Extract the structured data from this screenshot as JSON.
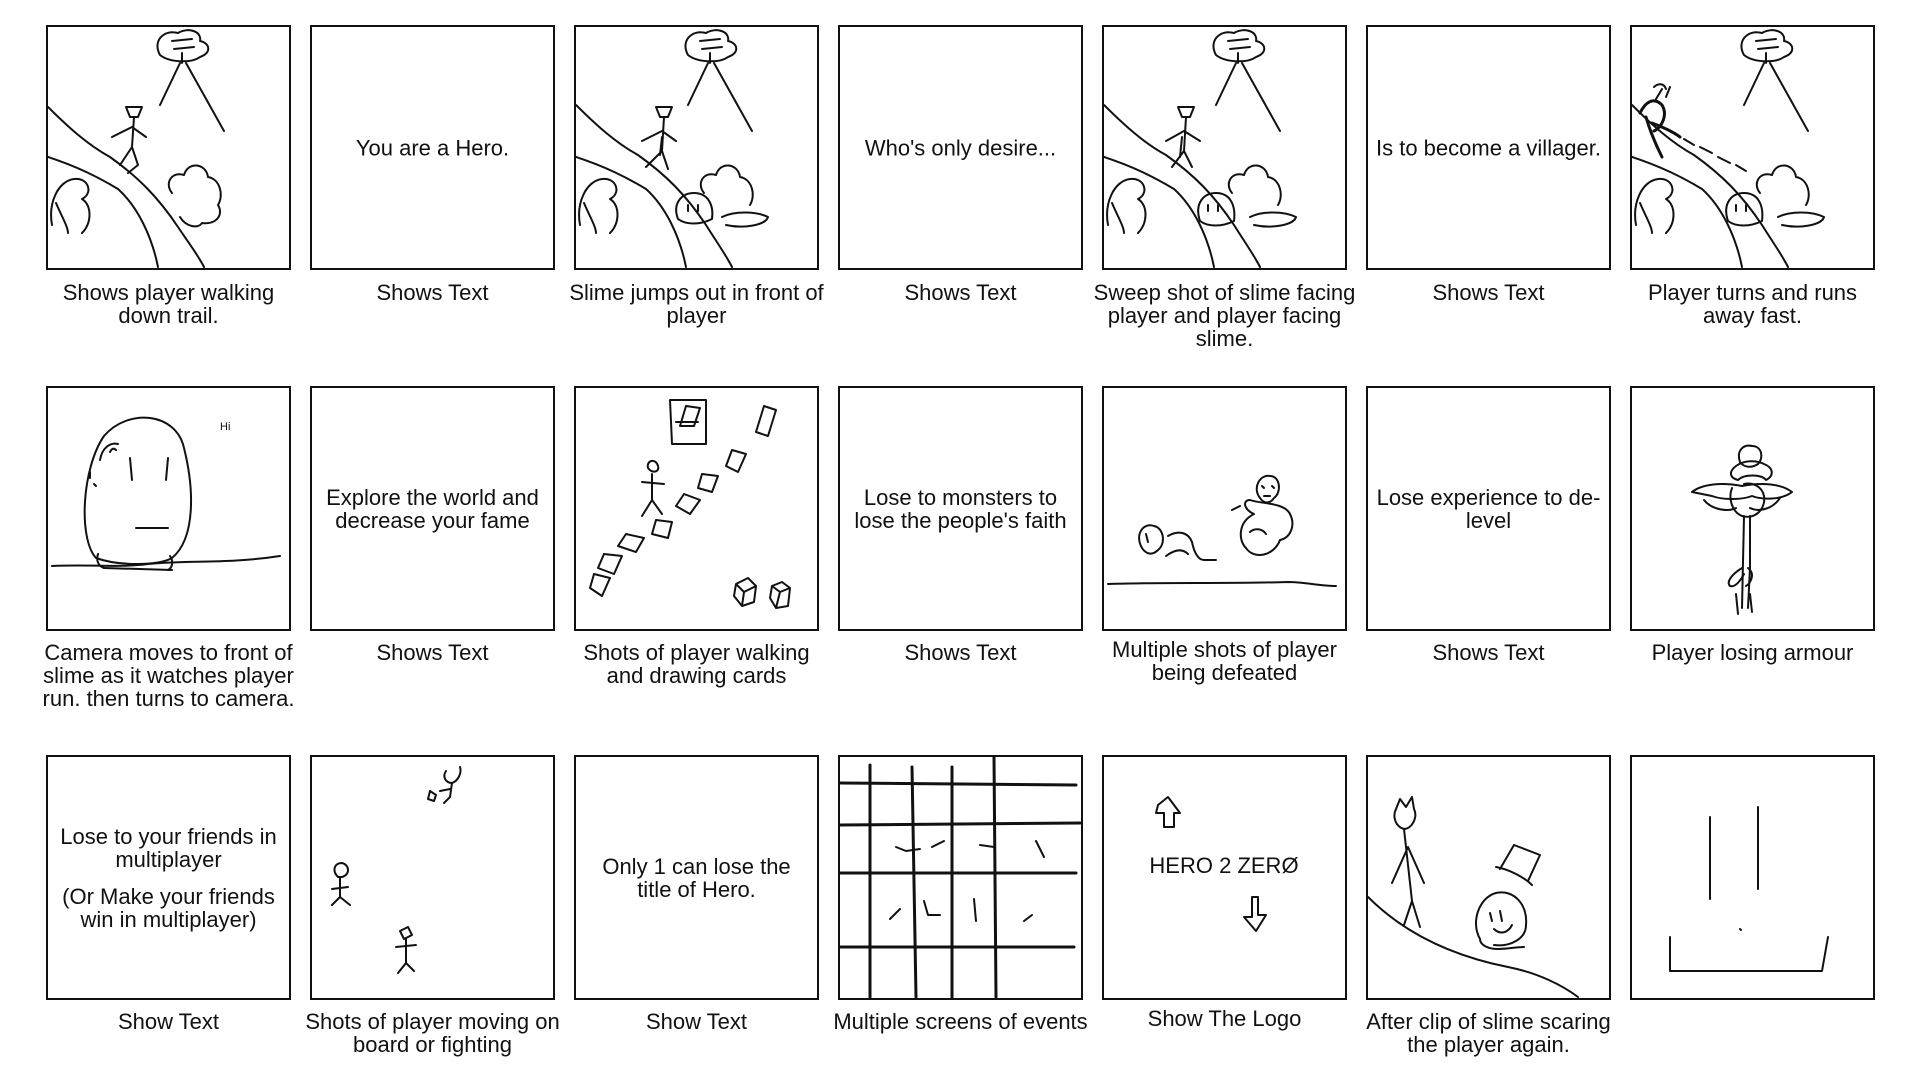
{
  "storyboard": {
    "rows": [
      {
        "panels": [
          {
            "panel_text": "",
            "caption": "Shows player walking down trail.",
            "drawing": "player-walking-trail"
          },
          {
            "panel_text": "You are a Hero.",
            "caption": "Shows Text",
            "drawing": "text-card"
          },
          {
            "panel_text": "",
            "caption": "Slime jumps out in front of player",
            "drawing": "slime-jumps-out"
          },
          {
            "panel_text": "Who's only desire...",
            "caption": "Shows Text",
            "drawing": "text-card"
          },
          {
            "panel_text": "",
            "caption": "Sweep shot of slime facing player and player facing slime.",
            "drawing": "slime-facing-player"
          },
          {
            "panel_text": "Is to become a villager.",
            "caption": "Shows Text",
            "drawing": "text-card"
          },
          {
            "panel_text": "",
            "caption": "Player turns and runs away fast.",
            "drawing": "player-runs-away"
          }
        ]
      },
      {
        "panels": [
          {
            "panel_text": "",
            "caption": "Camera moves to front of slime as it watches player run. then turns to camera.",
            "drawing": "slime-closeup"
          },
          {
            "panel_text": "Explore the world and decrease your fame",
            "caption": "Shows Text",
            "drawing": "text-card"
          },
          {
            "panel_text": "",
            "caption": "Shots of player walking and drawing cards",
            "drawing": "card-path"
          },
          {
            "panel_text": "Lose to monsters to lose the people's faith",
            "caption": "Shows Text",
            "drawing": "text-card"
          },
          {
            "panel_text": "",
            "caption": "Multiple shots of player being defeated",
            "drawing": "player-defeated"
          },
          {
            "panel_text": "Lose experience to de-level",
            "caption": "Shows Text",
            "drawing": "text-card"
          },
          {
            "panel_text": "",
            "caption": "Player losing armour",
            "drawing": "losing-armour"
          }
        ]
      },
      {
        "panels": [
          {
            "panel_text": "Lose to your friends in multiplayer",
            "panel_text_extra": "(Or Make your friends win in multiplayer)",
            "caption": "Show Text",
            "drawing": "text-card"
          },
          {
            "panel_text": "",
            "caption": "Shots of player moving on board or fighting",
            "drawing": "board-figures"
          },
          {
            "panel_text": "Only 1 can lose the title of Hero.",
            "caption": "Show Text",
            "drawing": "text-card"
          },
          {
            "panel_text": "",
            "caption": "Multiple screens of events",
            "drawing": "event-grid"
          },
          {
            "panel_text": "",
            "caption": "Show The Logo",
            "drawing": "logo",
            "logo_text": "HERO 2 ZERØ"
          },
          {
            "panel_text": "",
            "caption": "After clip of slime scaring the player again.",
            "drawing": "slime-scares"
          },
          {
            "panel_text": "",
            "caption": "",
            "drawing": "final-lines"
          }
        ]
      }
    ],
    "slime_speech": "Hi"
  }
}
